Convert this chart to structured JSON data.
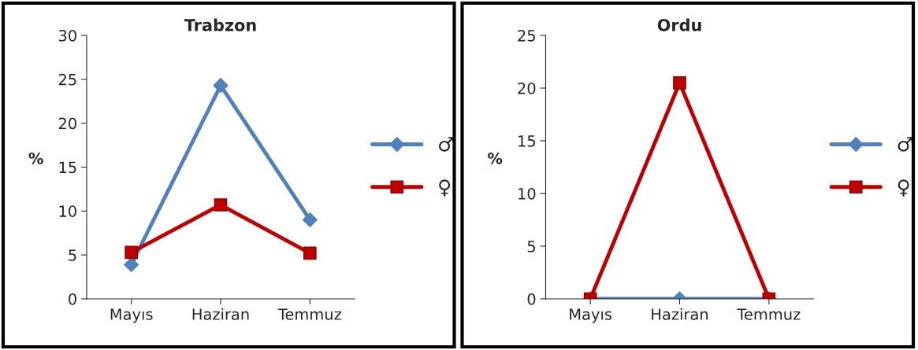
{
  "chart_data": [
    {
      "type": "line",
      "title": "Trabzon",
      "ylabel": "%",
      "categories": [
        "Mayıs",
        "Haziran",
        "Temmuz"
      ],
      "series": [
        {
          "name": "♂",
          "color": "#4f81bd",
          "marker": "diamond",
          "values": [
            3.9,
            24.3,
            9.0
          ]
        },
        {
          "name": "♀",
          "color": "#c00000",
          "marker": "square",
          "values": [
            5.3,
            10.7,
            5.2
          ]
        }
      ],
      "ylim": [
        0,
        30
      ],
      "yticks": [
        0,
        5,
        10,
        15,
        20,
        25,
        30
      ],
      "grid": false,
      "legend": "right"
    },
    {
      "type": "line",
      "title": "Ordu",
      "ylabel": "%",
      "categories": [
        "Mayıs",
        "Haziran",
        "Temmuz"
      ],
      "series": [
        {
          "name": "♂",
          "color": "#4f81bd",
          "marker": "diamond",
          "values": [
            0,
            0,
            0
          ]
        },
        {
          "name": "♀",
          "color": "#c00000",
          "marker": "square",
          "values": [
            0,
            20.5,
            0
          ]
        }
      ],
      "ylim": [
        0,
        25
      ],
      "yticks": [
        0,
        5,
        10,
        15,
        20,
        25
      ],
      "grid": false,
      "legend": "right"
    }
  ]
}
